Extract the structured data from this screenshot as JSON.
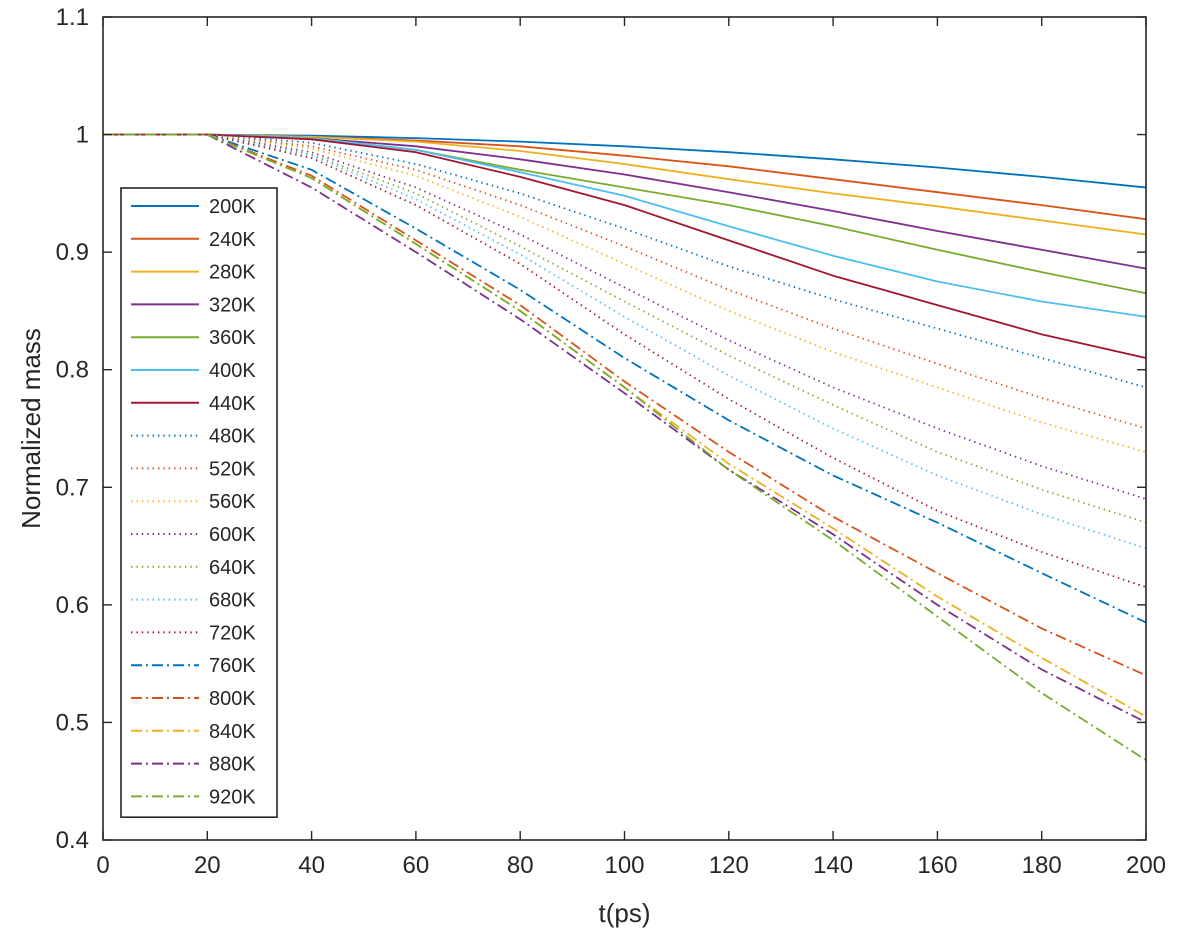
{
  "chart_data": {
    "type": "line",
    "title": "",
    "xlabel": "t(ps)",
    "ylabel": "Normalized mass",
    "xlim": [
      0,
      200
    ],
    "ylim": [
      0.4,
      1.1
    ],
    "xticks": [
      0,
      20,
      40,
      60,
      80,
      100,
      120,
      140,
      160,
      180,
      200
    ],
    "yticks": [
      0.4,
      0.5,
      0.6,
      0.7,
      0.8,
      0.9,
      1,
      1.1
    ],
    "xtick_labels": [
      "0",
      "20",
      "40",
      "60",
      "80",
      "100",
      "120",
      "140",
      "160",
      "180",
      "200"
    ],
    "ytick_labels": [
      "0.4",
      "0.5",
      "0.6",
      "0.7",
      "0.8",
      "0.9",
      "1",
      "1.1"
    ],
    "grid": false,
    "legend_position": "left",
    "x": [
      0,
      20,
      40,
      60,
      80,
      100,
      120,
      140,
      160,
      180,
      200
    ],
    "series": [
      {
        "name": "200K",
        "color": "#0072BD",
        "style": "solid",
        "values": [
          1,
          1,
          0.999,
          0.997,
          0.994,
          0.99,
          0.985,
          0.979,
          0.972,
          0.964,
          0.955
        ]
      },
      {
        "name": "240K",
        "color": "#D95319",
        "style": "solid",
        "values": [
          1,
          1,
          0.998,
          0.995,
          0.99,
          0.982,
          0.973,
          0.962,
          0.951,
          0.94,
          0.928
        ]
      },
      {
        "name": "280K",
        "color": "#EDB120",
        "style": "solid",
        "values": [
          1,
          1,
          0.998,
          0.994,
          0.986,
          0.975,
          0.962,
          0.95,
          0.939,
          0.927,
          0.915
        ]
      },
      {
        "name": "320K",
        "color": "#7E2F8E",
        "style": "solid",
        "values": [
          1,
          1,
          0.997,
          0.99,
          0.979,
          0.966,
          0.951,
          0.935,
          0.918,
          0.902,
          0.886
        ]
      },
      {
        "name": "360K",
        "color": "#77AC30",
        "style": "solid",
        "values": [
          1,
          1,
          0.997,
          0.987,
          0.97,
          0.955,
          0.94,
          0.922,
          0.902,
          0.883,
          0.865
        ]
      },
      {
        "name": "400K",
        "color": "#4DBEEE",
        "style": "solid",
        "values": [
          1,
          1,
          0.997,
          0.987,
          0.968,
          0.948,
          0.922,
          0.897,
          0.875,
          0.858,
          0.845
        ]
      },
      {
        "name": "440K",
        "color": "#A2142F",
        "style": "solid",
        "values": [
          1,
          1,
          0.996,
          0.985,
          0.964,
          0.94,
          0.91,
          0.88,
          0.855,
          0.83,
          0.81
        ]
      },
      {
        "name": "480K",
        "color": "#0072BD",
        "style": "dotted",
        "values": [
          1,
          1,
          0.993,
          0.975,
          0.95,
          0.92,
          0.888,
          0.86,
          0.835,
          0.81,
          0.785
        ]
      },
      {
        "name": "520K",
        "color": "#D95319",
        "style": "dotted",
        "values": [
          1,
          1,
          0.99,
          0.97,
          0.94,
          0.905,
          0.868,
          0.835,
          0.805,
          0.776,
          0.75
        ]
      },
      {
        "name": "560K",
        "color": "#EDB120",
        "style": "dotted",
        "values": [
          1,
          1,
          0.988,
          0.965,
          0.93,
          0.89,
          0.85,
          0.815,
          0.785,
          0.755,
          0.73
        ]
      },
      {
        "name": "600K",
        "color": "#7E2F8E",
        "style": "dotted",
        "values": [
          1,
          1,
          0.985,
          0.955,
          0.915,
          0.87,
          0.825,
          0.785,
          0.75,
          0.718,
          0.69
        ]
      },
      {
        "name": "640K",
        "color": "#77AC30",
        "style": "dotted",
        "values": [
          1,
          1,
          0.983,
          0.95,
          0.905,
          0.858,
          0.812,
          0.77,
          0.73,
          0.698,
          0.67
        ]
      },
      {
        "name": "680K",
        "color": "#4DBEEE",
        "style": "dotted",
        "values": [
          1,
          1,
          0.982,
          0.945,
          0.898,
          0.845,
          0.795,
          0.75,
          0.71,
          0.677,
          0.648
        ]
      },
      {
        "name": "720K",
        "color": "#A2142F",
        "style": "dotted",
        "values": [
          1,
          1,
          0.98,
          0.94,
          0.89,
          0.83,
          0.775,
          0.725,
          0.68,
          0.645,
          0.615
        ]
      },
      {
        "name": "760K",
        "color": "#0072BD",
        "style": "dashdot",
        "values": [
          1,
          1,
          0.97,
          0.92,
          0.868,
          0.81,
          0.757,
          0.71,
          0.67,
          0.627,
          0.585
        ]
      },
      {
        "name": "800K",
        "color": "#D95319",
        "style": "dashdot",
        "values": [
          1,
          1,
          0.965,
          0.91,
          0.855,
          0.79,
          0.73,
          0.675,
          0.627,
          0.58,
          0.54
        ]
      },
      {
        "name": "840K",
        "color": "#EDB120",
        "style": "dashdot",
        "values": [
          1,
          1,
          0.963,
          0.907,
          0.85,
          0.785,
          0.72,
          0.665,
          0.607,
          0.555,
          0.505
        ]
      },
      {
        "name": "880K",
        "color": "#7E2F8E",
        "style": "dashdot",
        "values": [
          1,
          1,
          0.955,
          0.9,
          0.843,
          0.78,
          0.715,
          0.66,
          0.6,
          0.545,
          0.5
        ]
      },
      {
        "name": "920K",
        "color": "#77AC30",
        "style": "dashdot",
        "values": [
          1,
          1,
          0.963,
          0.907,
          0.85,
          0.785,
          0.715,
          0.655,
          0.59,
          0.525,
          0.468
        ]
      }
    ]
  }
}
